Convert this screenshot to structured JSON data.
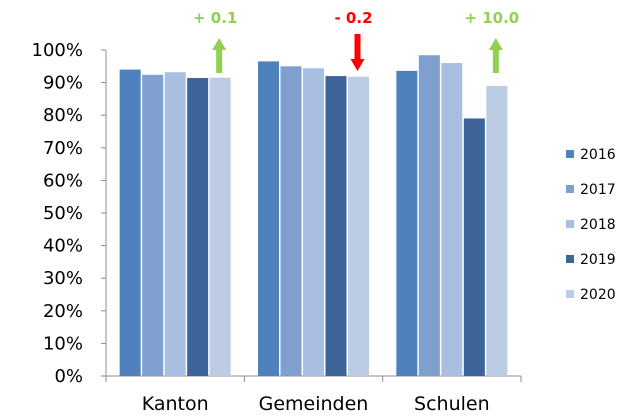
{
  "chart_data": {
    "type": "bar",
    "title": "",
    "xlabel": "",
    "ylabel": "",
    "ylim": [
      0,
      100
    ],
    "y_tick_format": "%",
    "y_ticks": [
      "0%",
      "10%",
      "20%",
      "30%",
      "40%",
      "50%",
      "60%",
      "70%",
      "80%",
      "90%",
      "100%"
    ],
    "categories": [
      "Kanton",
      "Gemeinden",
      "Schulen"
    ],
    "series": [
      {
        "name": "2016",
        "color": "#4F81BD",
        "values": [
          94.0,
          96.5,
          93.6
        ]
      },
      {
        "name": "2017",
        "color": "#7F9FCF",
        "values": [
          92.4,
          95.0,
          98.4
        ]
      },
      {
        "name": "2018",
        "color": "#A9BFE1",
        "values": [
          93.2,
          94.4,
          96.0
        ]
      },
      {
        "name": "2019",
        "color": "#3D6499",
        "values": [
          91.4,
          92.0,
          79.0
        ]
      },
      {
        "name": "2020",
        "color": "#BCCCE5",
        "values": [
          91.5,
          91.8,
          89.0
        ]
      }
    ],
    "annotations": [
      {
        "category": "Kanton",
        "text": "+ 0.1",
        "direction": "up",
        "color": "#92D050"
      },
      {
        "category": "Gemeinden",
        "text": "- 0.2",
        "direction": "down",
        "color": "#FF0000"
      },
      {
        "category": "Schulen",
        "text": "+ 10.0",
        "direction": "up",
        "color": "#92D050"
      }
    ],
    "grid": false,
    "legend": "right"
  }
}
